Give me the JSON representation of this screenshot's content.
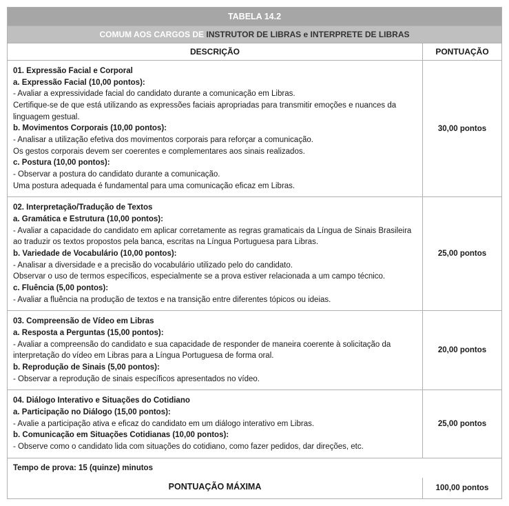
{
  "header": {
    "title": "TABELA 14.2",
    "subtitle_light": "COMUM AOS CARGOS DE ",
    "subtitle_dark": "INSTRUTOR DE LIBRAS e INTERPRETE DE LIBRAS",
    "col_desc": "DESCRIÇÃO",
    "col_pts": "PONTUAÇÃO"
  },
  "sections": [
    {
      "title": "01. Expressão Facial e Corporal",
      "points": "30,00 pontos",
      "items": [
        {
          "label": "a. Expressão Facial (10,00 pontos):",
          "lines": [
            "- Avaliar a expressividade facial do candidato durante a comunicação em Libras.",
            "Certifique-se de que está utilizando as expressões faciais apropriadas para transmitir emoções e nuances da linguagem gestual."
          ]
        },
        {
          "label": "b. Movimentos Corporais (10,00 pontos):",
          "lines": [
            "- Analisar a utilização efetiva dos movimentos corporais para reforçar a comunicação.",
            "Os gestos corporais devem ser coerentes e complementares aos sinais realizados."
          ]
        },
        {
          "label": "c. Postura (10,00 pontos):",
          "lines": [
            "- Observar a postura do candidato durante a comunicação.",
            "Uma postura adequada é fundamental para uma comunicação eficaz em Libras."
          ]
        }
      ]
    },
    {
      "title": "02. Interpretação/Tradução de Textos",
      "points": "25,00 pontos",
      "items": [
        {
          "label": "a. Gramática e Estrutura (10,00 pontos):",
          "lines": [
            "- Avaliar a capacidade do candidato em aplicar corretamente as regras gramaticais da Língua de Sinais Brasileira ao traduzir os textos propostos pela banca, escritas na Língua Portuguesa para Libras."
          ]
        },
        {
          "label": "b. Variedade de Vocabulário (10,00 pontos):",
          "lines": [
            "- Analisar a diversidade e a precisão do vocabulário utilizado pelo do candidato.",
            "Observar o uso de termos específicos, especialmente se a prova estiver relacionada a um campo técnico."
          ]
        },
        {
          "label": "c. Fluência (5,00 pontos):",
          "lines": [
            "- Avaliar a fluência na produção de textos e na transição entre diferentes tópicos ou ideias."
          ]
        }
      ]
    },
    {
      "title": "03. Compreensão de Vídeo em Libras",
      "points": "20,00 pontos",
      "items": [
        {
          "label": "a. Resposta a Perguntas (15,00 pontos):",
          "lines": [
            "- Avaliar a compreensão do candidato e sua capacidade de responder de maneira coerente à solicitação da interpretação do vídeo em Libras para a Língua Portuguesa de forma oral."
          ]
        },
        {
          "label": "b. Reprodução de Sinais (5,00 pontos):",
          "lines": [
            "- Observar a reprodução de sinais específicos apresentados no vídeo."
          ]
        }
      ]
    },
    {
      "title": "04. Diálogo Interativo e Situações do Cotidiano",
      "points": "25,00 pontos",
      "items": [
        {
          "label": "a. Participação no Diálogo (15,00 pontos):",
          "lines": [
            "- Avalie a participação ativa e eficaz do candidato em um diálogo interativo em Libras."
          ]
        },
        {
          "label": "b. Comunicação em Situações Cotidianas (10,00 pontos):",
          "lines": [
            "- Observe como o candidato lida com situações do cotidiano, como fazer pedidos, dar direções, etc."
          ]
        }
      ]
    }
  ],
  "footer": {
    "time": "Tempo de prova: 15 (quinze) minutos",
    "max_label": "PONTUAÇÃO MÁXIMA",
    "max_value": "100,00 pontos"
  }
}
